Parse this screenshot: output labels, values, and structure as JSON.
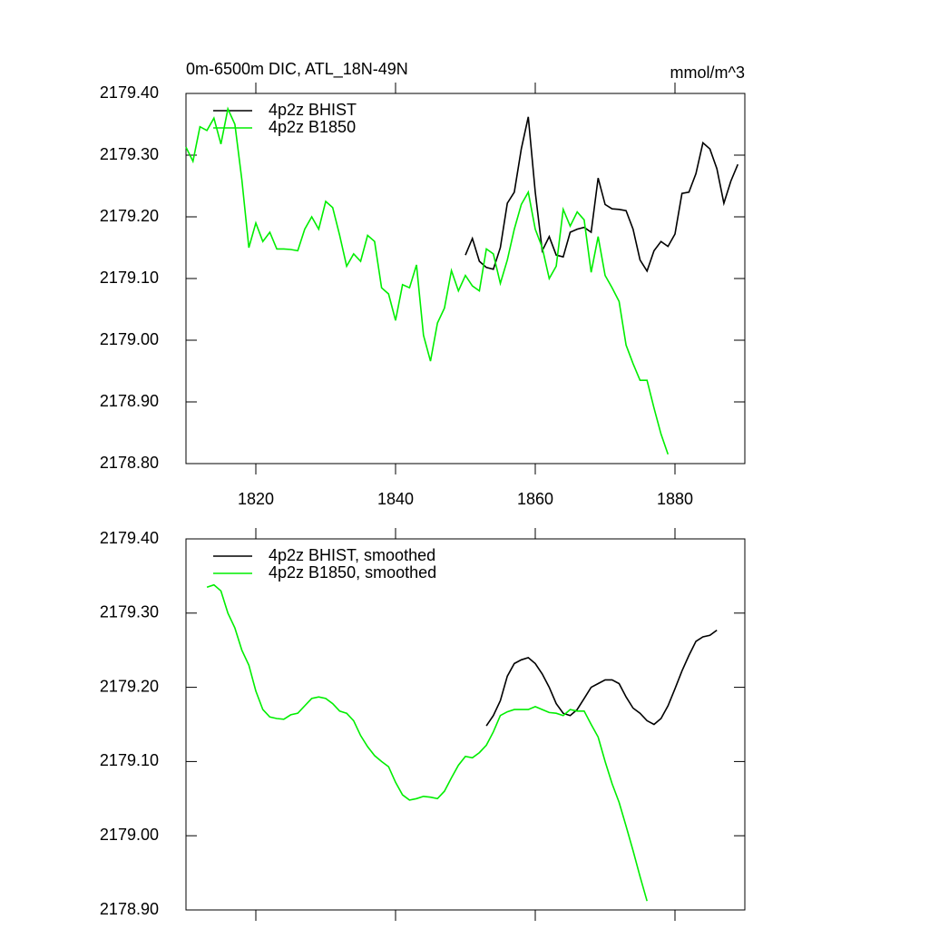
{
  "chart_data": [
    {
      "type": "line",
      "title": "0m-6500m DIC, ATL_18N-49N",
      "units": "mmol/m^3",
      "xlim": [
        1810,
        1890
      ],
      "xticks": [
        1820,
        1840,
        1860,
        1880
      ],
      "show_xtick_labels": true,
      "ylim": [
        2178.8,
        2179.4
      ],
      "yticks": [
        {
          "value": 2178.8,
          "label": "2178.80"
        },
        {
          "value": 2178.9,
          "label": "2178.90"
        },
        {
          "value": 2179.0,
          "label": "2179.00"
        },
        {
          "value": 2179.1,
          "label": "2179.10"
        },
        {
          "value": 2179.2,
          "label": "2179.20"
        },
        {
          "value": 2179.3,
          "label": "2179.30"
        },
        {
          "value": 2179.4,
          "label": "2179.40"
        }
      ],
      "series": [
        {
          "name": "4p2z BHIST",
          "color": "#000000",
          "x": [
            1850,
            1851,
            1852,
            1853,
            1854,
            1855,
            1856,
            1857,
            1858,
            1859,
            1860,
            1861,
            1862,
            1863,
            1864,
            1865,
            1866,
            1867,
            1868,
            1869,
            1870,
            1871,
            1872,
            1873,
            1874,
            1875,
            1876,
            1877,
            1878,
            1879,
            1880,
            1881,
            1882,
            1883,
            1884,
            1885,
            1886,
            1887,
            1888,
            1889
          ],
          "values": [
            2179.138,
            2179.165,
            2179.128,
            2179.118,
            2179.115,
            2179.15,
            2179.222,
            2179.24,
            2179.31,
            2179.362,
            2179.24,
            2179.145,
            2179.168,
            2179.138,
            2179.135,
            2179.175,
            2179.18,
            2179.183,
            2179.175,
            2179.263,
            2179.22,
            2179.213,
            2179.212,
            2179.21,
            2179.18,
            2179.13,
            2179.112,
            2179.145,
            2179.16,
            2179.152,
            2179.172,
            2179.238,
            2179.24,
            2179.27,
            2179.32,
            2179.31,
            2179.278,
            2179.222,
            2179.258,
            2179.285
          ]
        },
        {
          "name": "4p2z B1850",
          "color": "#00ee00",
          "x": [
            1810,
            1811,
            1812,
            1813,
            1814,
            1815,
            1816,
            1817,
            1818,
            1819,
            1820,
            1821,
            1822,
            1823,
            1824,
            1825,
            1826,
            1827,
            1828,
            1829,
            1830,
            1831,
            1832,
            1833,
            1834,
            1835,
            1836,
            1837,
            1838,
            1839,
            1840,
            1841,
            1842,
            1843,
            1844,
            1845,
            1846,
            1847,
            1848,
            1849,
            1850,
            1851,
            1852,
            1853,
            1854,
            1855,
            1856,
            1857,
            1858,
            1859,
            1860,
            1861,
            1862,
            1863,
            1864,
            1865,
            1866,
            1867,
            1868,
            1869,
            1870,
            1871,
            1872,
            1873,
            1874,
            1875,
            1876,
            1877,
            1878,
            1879
          ],
          "values": [
            2179.313,
            2179.29,
            2179.346,
            2179.34,
            2179.36,
            2179.318,
            2179.375,
            2179.35,
            2179.26,
            2179.15,
            2179.19,
            2179.16,
            2179.175,
            2179.148,
            2179.148,
            2179.147,
            2179.145,
            2179.18,
            2179.2,
            2179.18,
            2179.225,
            2179.215,
            2179.17,
            2179.12,
            2179.14,
            2179.128,
            2179.17,
            2179.16,
            2179.085,
            2179.075,
            2179.032,
            2179.09,
            2179.085,
            2179.122,
            2179.008,
            2178.966,
            2179.028,
            2179.052,
            2179.113,
            2179.08,
            2179.105,
            2179.088,
            2179.08,
            2179.148,
            2179.14,
            2179.092,
            2179.13,
            2179.18,
            2179.22,
            2179.24,
            2179.18,
            2179.15,
            2179.1,
            2179.12,
            2179.212,
            2179.185,
            2179.208,
            2179.195,
            2179.11,
            2179.168,
            2179.105,
            2179.085,
            2179.063,
            2178.992,
            2178.962,
            2178.935,
            2178.935,
            2178.89,
            2178.848,
            2178.815
          ]
        }
      ]
    },
    {
      "type": "line",
      "xlim": [
        1810,
        1890
      ],
      "xticks": [
        1820,
        1840,
        1860,
        1880
      ],
      "show_xtick_labels": false,
      "ylim": [
        2178.9,
        2179.4
      ],
      "yticks": [
        {
          "value": 2178.9,
          "label": "2178.90"
        },
        {
          "value": 2179.0,
          "label": "2179.00"
        },
        {
          "value": 2179.1,
          "label": "2179.10"
        },
        {
          "value": 2179.2,
          "label": "2179.20"
        },
        {
          "value": 2179.3,
          "label": "2179.30"
        },
        {
          "value": 2179.4,
          "label": "2179.40"
        }
      ],
      "series": [
        {
          "name": "4p2z BHIST, smoothed",
          "color": "#000000",
          "x": [
            1853,
            1854,
            1855,
            1856,
            1857,
            1858,
            1859,
            1860,
            1861,
            1862,
            1863,
            1864,
            1865,
            1866,
            1867,
            1868,
            1869,
            1870,
            1871,
            1872,
            1873,
            1874,
            1875,
            1876,
            1877,
            1878,
            1879,
            1880,
            1881,
            1882,
            1883,
            1884,
            1885,
            1886
          ],
          "values": [
            2179.148,
            2179.162,
            2179.182,
            2179.215,
            2179.232,
            2179.237,
            2179.24,
            2179.232,
            2179.218,
            2179.2,
            2179.178,
            2179.165,
            2179.162,
            2179.17,
            2179.185,
            2179.2,
            2179.205,
            2179.21,
            2179.21,
            2179.205,
            2179.187,
            2179.172,
            2179.165,
            2179.155,
            2179.15,
            2179.158,
            2179.175,
            2179.198,
            2179.222,
            2179.243,
            2179.262,
            2179.268,
            2179.27,
            2179.277
          ]
        },
        {
          "name": "4p2z B1850, smoothed",
          "color": "#00ee00",
          "x": [
            1813,
            1814,
            1815,
            1816,
            1817,
            1818,
            1819,
            1820,
            1821,
            1822,
            1823,
            1824,
            1825,
            1826,
            1827,
            1828,
            1829,
            1830,
            1831,
            1832,
            1833,
            1834,
            1835,
            1836,
            1837,
            1838,
            1839,
            1840,
            1841,
            1842,
            1843,
            1844,
            1845,
            1846,
            1847,
            1848,
            1849,
            1850,
            1851,
            1852,
            1853,
            1854,
            1855,
            1856,
            1857,
            1858,
            1859,
            1860,
            1861,
            1862,
            1863,
            1864,
            1865,
            1866,
            1867,
            1868,
            1869,
            1870,
            1871,
            1872,
            1873,
            1874,
            1875,
            1876
          ],
          "values": [
            2179.335,
            2179.338,
            2179.33,
            2179.3,
            2179.28,
            2179.25,
            2179.23,
            2179.195,
            2179.17,
            2179.16,
            2179.158,
            2179.157,
            2179.163,
            2179.165,
            2179.175,
            2179.185,
            2179.187,
            2179.185,
            2179.178,
            2179.168,
            2179.165,
            2179.155,
            2179.135,
            2179.12,
            2179.108,
            2179.1,
            2179.093,
            2179.072,
            2179.055,
            2179.048,
            2179.05,
            2179.053,
            2179.052,
            2179.05,
            2179.06,
            2179.078,
            2179.095,
            2179.107,
            2179.105,
            2179.112,
            2179.122,
            2179.14,
            2179.162,
            2179.167,
            2179.17,
            2179.17,
            2179.17,
            2179.174,
            2179.17,
            2179.166,
            2179.165,
            2179.162,
            2179.17,
            2179.168,
            2179.168,
            2179.15,
            2179.133,
            2179.1,
            2179.07,
            2179.045,
            2179.013,
            2178.98,
            2178.945,
            2178.912
          ]
        }
      ]
    }
  ]
}
